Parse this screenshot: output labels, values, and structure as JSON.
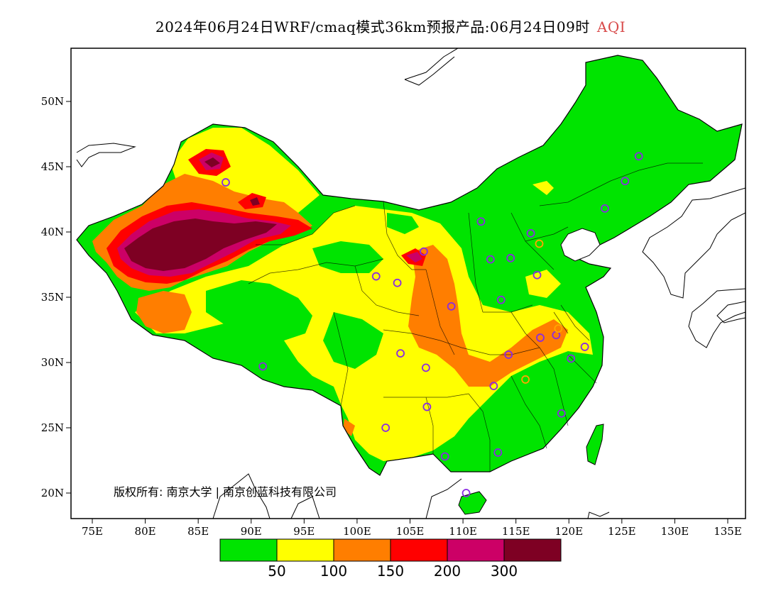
{
  "title": {
    "text": "2024年06月24日WRF/cmaq模式36km预报产品:06月24日09时",
    "tag": "AQI",
    "tag_color": "#d84a4a"
  },
  "copyright": "版权所有: 南京大学 | 南京创蓝科技有限公司",
  "axes": {
    "x_ticks": [
      "75E",
      "80E",
      "85E",
      "90E",
      "95E",
      "100E",
      "105E",
      "110E",
      "115E",
      "120E",
      "125E",
      "130E",
      "135E"
    ],
    "y_ticks": [
      "50N",
      "45N",
      "40N",
      "35N",
      "30N",
      "25N",
      "20N"
    ]
  },
  "legend": {
    "colors": [
      "#00e400",
      "#ffff00",
      "#ff7e00",
      "#ff0000",
      "#cc0066",
      "#7e0023"
    ],
    "labels": [
      "50",
      "100",
      "150",
      "200",
      "300"
    ]
  },
  "stations": [
    {
      "lon": 87.6,
      "lat": 43.8,
      "color": "#8a2be2"
    },
    {
      "lon": 91.1,
      "lat": 29.7,
      "color": "#8a2be2"
    },
    {
      "lon": 101.8,
      "lat": 36.6,
      "color": "#8a2be2"
    },
    {
      "lon": 103.8,
      "lat": 36.1,
      "color": "#8a2be2"
    },
    {
      "lon": 106.3,
      "lat": 38.5,
      "color": "#8a2be2"
    },
    {
      "lon": 111.7,
      "lat": 40.8,
      "color": "#8a2be2"
    },
    {
      "lon": 108.9,
      "lat": 34.3,
      "color": "#8a2be2"
    },
    {
      "lon": 112.6,
      "lat": 37.9,
      "color": "#8a2be2"
    },
    {
      "lon": 114.5,
      "lat": 38.0,
      "color": "#8a2be2"
    },
    {
      "lon": 116.4,
      "lat": 39.9,
      "color": "#8a2be2"
    },
    {
      "lon": 117.2,
      "lat": 39.1,
      "color": "#ffa500"
    },
    {
      "lon": 117.0,
      "lat": 36.7,
      "color": "#8a2be2"
    },
    {
      "lon": 113.6,
      "lat": 34.8,
      "color": "#8a2be2"
    },
    {
      "lon": 117.3,
      "lat": 31.9,
      "color": "#8a2be2"
    },
    {
      "lon": 118.8,
      "lat": 32.1,
      "color": "#8a2be2"
    },
    {
      "lon": 121.5,
      "lat": 31.2,
      "color": "#8a2be2"
    },
    {
      "lon": 120.2,
      "lat": 30.3,
      "color": "#8a2be2"
    },
    {
      "lon": 114.3,
      "lat": 30.6,
      "color": "#8a2be2"
    },
    {
      "lon": 112.9,
      "lat": 28.2,
      "color": "#8a2be2"
    },
    {
      "lon": 115.9,
      "lat": 28.7,
      "color": "#ffa500"
    },
    {
      "lon": 119.3,
      "lat": 26.1,
      "color": "#8a2be2"
    },
    {
      "lon": 113.3,
      "lat": 23.1,
      "color": "#8a2be2"
    },
    {
      "lon": 108.3,
      "lat": 22.8,
      "color": "#8a2be2"
    },
    {
      "lon": 110.3,
      "lat": 20.0,
      "color": "#8a2be2"
    },
    {
      "lon": 106.6,
      "lat": 26.6,
      "color": "#8a2be2"
    },
    {
      "lon": 102.7,
      "lat": 25.0,
      "color": "#8a2be2"
    },
    {
      "lon": 104.1,
      "lat": 30.7,
      "color": "#8a2be2"
    },
    {
      "lon": 106.5,
      "lat": 29.6,
      "color": "#8a2be2"
    },
    {
      "lon": 123.4,
      "lat": 41.8,
      "color": "#8a2be2"
    },
    {
      "lon": 125.3,
      "lat": 43.9,
      "color": "#8a2be2"
    },
    {
      "lon": 126.6,
      "lat": 45.8,
      "color": "#8a2be2"
    },
    {
      "lon": 119.0,
      "lat": 32.6,
      "color": "#ffa500"
    }
  ]
}
